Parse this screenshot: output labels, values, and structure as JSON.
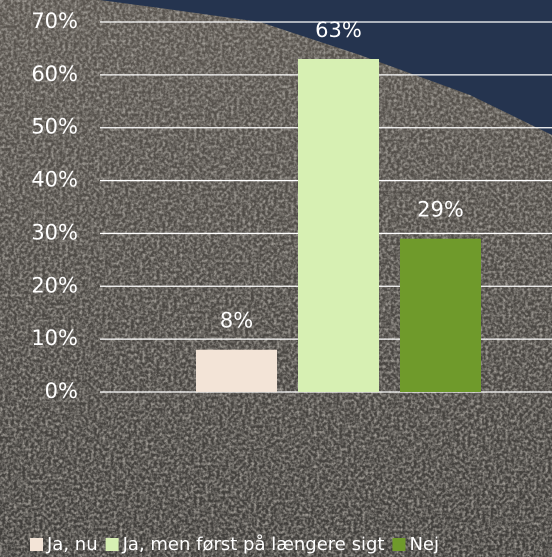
{
  "chart_data": {
    "type": "bar",
    "categories": [
      null
    ],
    "series": [
      {
        "name": "Ja, nu",
        "color": "#f3e4d7",
        "values": [
          8
        ],
        "value_labels": [
          "8%"
        ]
      },
      {
        "name": "Ja, men først på længere sigt",
        "color": "#d7f0b3",
        "values": [
          63
        ],
        "value_labels": [
          "63%"
        ]
      },
      {
        "name": "Nej",
        "color": "#6f9a2b",
        "values": [
          29
        ],
        "value_labels": [
          "29%"
        ]
      }
    ],
    "ylim": [
      0,
      70
    ],
    "yticks": [
      {
        "value": 0,
        "label": "0%"
      },
      {
        "value": 10,
        "label": "10%"
      },
      {
        "value": 20,
        "label": "20%"
      },
      {
        "value": 30,
        "label": "30%"
      },
      {
        "value": 40,
        "label": "40%"
      },
      {
        "value": 50,
        "label": "50%"
      },
      {
        "value": 60,
        "label": "60%"
      },
      {
        "value": 70,
        "label": "70%"
      }
    ],
    "grid": true,
    "legend": "bottom"
  }
}
